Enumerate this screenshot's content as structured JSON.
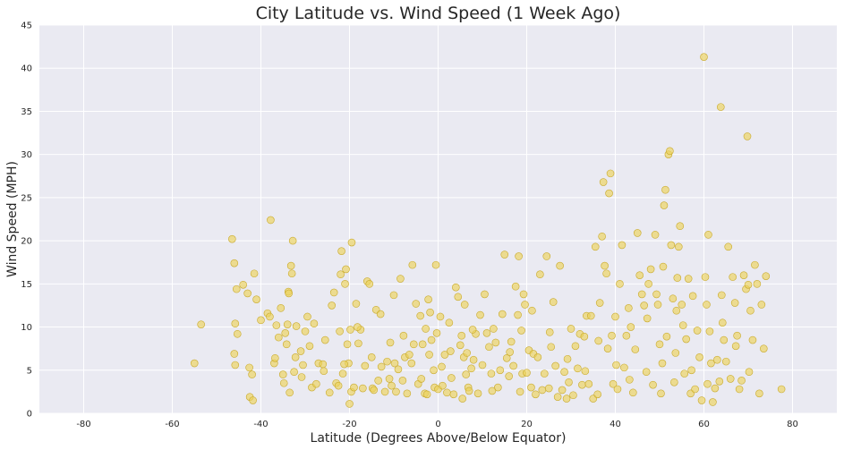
{
  "chart_data": {
    "type": "scatter",
    "title": "City Latitude vs. Wind Speed (1 Week Ago)",
    "xlabel": "Latitude (Degrees Above/Below Equator)",
    "ylabel": "Wind Speed (MPH)",
    "xlim": [
      -90,
      90
    ],
    "ylim": [
      0,
      45
    ],
    "xticks": [
      -80,
      -60,
      -40,
      -20,
      0,
      20,
      40,
      60,
      80
    ],
    "yticks": [
      0,
      5,
      10,
      15,
      20,
      25,
      30,
      35,
      40,
      45
    ],
    "grid": true,
    "colors": {
      "point_fill": "#ecd25a",
      "point_edge": "#c8a92a",
      "plot_bg": "#eaeaf2",
      "grid": "#ffffff"
    },
    "series": [
      {
        "values": [
          [
            -55,
            5.8
          ],
          [
            -53.5,
            10.3
          ],
          [
            -46.5,
            20.2
          ],
          [
            -46,
            17.4
          ],
          [
            -45.8,
            10.4
          ],
          [
            -45.5,
            14.4
          ],
          [
            -45.3,
            9.2
          ],
          [
            -46,
            6.9
          ],
          [
            -45.8,
            5.6
          ],
          [
            -43,
            13.9
          ],
          [
            -42.6,
            5.3
          ],
          [
            -42,
            4.5
          ],
          [
            -41.5,
            16.2
          ],
          [
            -41,
            13.2
          ],
          [
            -42.5,
            1.9
          ],
          [
            -41.8,
            1.5
          ],
          [
            -40,
            10.8
          ],
          [
            -38.5,
            11.6
          ],
          [
            -37.8,
            22.4
          ],
          [
            -37,
            5.8
          ],
          [
            -36.5,
            10.2
          ],
          [
            -36,
            8.8
          ],
          [
            -35.5,
            12.2
          ],
          [
            -35,
            4.5
          ],
          [
            -34.8,
            3.5
          ],
          [
            -34.5,
            9.3
          ],
          [
            -34.2,
            8.0
          ],
          [
            -34,
            10.3
          ],
          [
            -33.8,
            14.1
          ],
          [
            -33.5,
            2.4
          ],
          [
            -33.2,
            17.1
          ],
          [
            -33,
            16.2
          ],
          [
            -32.8,
            20.0
          ],
          [
            -32.5,
            4.8
          ],
          [
            -32.2,
            6.5
          ],
          [
            -32,
            10.1
          ],
          [
            -31,
            7.2
          ],
          [
            -30.5,
            5.6
          ],
          [
            -30,
            9.5
          ],
          [
            -29.5,
            11.2
          ],
          [
            -29,
            7.8
          ],
          [
            -28.5,
            3.0
          ],
          [
            -28,
            10.4
          ],
          [
            -27.5,
            3.4
          ],
          [
            -27,
            5.8
          ],
          [
            -26,
            5.7
          ],
          [
            -25.5,
            8.5
          ],
          [
            -24.5,
            2.4
          ],
          [
            -24,
            12.5
          ],
          [
            -23.5,
            14.0
          ],
          [
            -23,
            3.5
          ],
          [
            -22.5,
            3.2
          ],
          [
            -22.2,
            9.5
          ],
          [
            -22,
            16.1
          ],
          [
            -21.8,
            18.8
          ],
          [
            -21.5,
            4.6
          ],
          [
            -21,
            15.0
          ],
          [
            -20.8,
            16.7
          ],
          [
            -20.5,
            8.0
          ],
          [
            -20.2,
            5.8
          ],
          [
            -20,
            1.1
          ],
          [
            -19.8,
            9.7
          ],
          [
            -19.6,
            2.5
          ],
          [
            -19.5,
            19.8
          ],
          [
            -19,
            3.0
          ],
          [
            -18.5,
            12.7
          ],
          [
            -18,
            8.1
          ],
          [
            -17.5,
            9.7
          ],
          [
            -17,
            2.9
          ],
          [
            -16.5,
            5.5
          ],
          [
            -16,
            15.3
          ],
          [
            -15.5,
            15.0
          ],
          [
            -15,
            6.5
          ],
          [
            -14.8,
            2.9
          ],
          [
            -14.5,
            2.7
          ],
          [
            -14,
            12.0
          ],
          [
            -13.5,
            3.8
          ],
          [
            -13,
            11.5
          ],
          [
            -12,
            2.5
          ],
          [
            -11.5,
            6.0
          ],
          [
            -11,
            4.0
          ],
          [
            -10.5,
            3.2
          ],
          [
            -10,
            13.7
          ],
          [
            -9.8,
            5.8
          ],
          [
            -9.5,
            2.5
          ],
          [
            -9,
            5.1
          ],
          [
            -8.5,
            15.6
          ],
          [
            -8,
            3.8
          ],
          [
            -7.5,
            6.5
          ],
          [
            -7,
            2.3
          ],
          [
            -6.5,
            6.8
          ],
          [
            -6,
            5.8
          ],
          [
            -5.8,
            17.2
          ],
          [
            -5.5,
            8.0
          ],
          [
            -5,
            12.7
          ],
          [
            -4.5,
            3.4
          ],
          [
            -4,
            11.3
          ],
          [
            -3.5,
            8.0
          ],
          [
            -3,
            2.3
          ],
          [
            -2.8,
            9.8
          ],
          [
            -2.5,
            2.2
          ],
          [
            -2.2,
            13.2
          ],
          [
            -2,
            6.8
          ],
          [
            -1.8,
            11.7
          ],
          [
            -1.5,
            8.5
          ],
          [
            -1,
            5.0
          ],
          [
            -0.8,
            3.0
          ],
          [
            -0.5,
            17.2
          ],
          [
            -0.3,
            9.3
          ],
          [
            0,
            2.8
          ],
          [
            0.5,
            11.2
          ],
          [
            1,
            3.2
          ],
          [
            1.5,
            6.8
          ],
          [
            2,
            2.4
          ],
          [
            2.5,
            10.5
          ],
          [
            3,
            4.1
          ],
          [
            3.5,
            2.2
          ],
          [
            4,
            14.6
          ],
          [
            4.5,
            13.5
          ],
          [
            5,
            7.9
          ],
          [
            5.3,
            9.0
          ],
          [
            5.5,
            1.7
          ],
          [
            5.8,
            6.5
          ],
          [
            6,
            12.6
          ],
          [
            6.3,
            4.5
          ],
          [
            6.5,
            7.0
          ],
          [
            6.8,
            3.0
          ],
          [
            7,
            2.6
          ],
          [
            7.5,
            5.2
          ],
          [
            8,
            6.2
          ],
          [
            8.5,
            9.2
          ],
          [
            9,
            2.3
          ],
          [
            9.5,
            11.4
          ],
          [
            10,
            5.6
          ],
          [
            10.5,
            13.8
          ],
          [
            11,
            9.3
          ],
          [
            11.5,
            7.7
          ],
          [
            12,
            4.6
          ],
          [
            12.5,
            9.8
          ],
          [
            13,
            8.2
          ],
          [
            13.5,
            3.0
          ],
          [
            14,
            5.0
          ],
          [
            14.5,
            11.5
          ],
          [
            15,
            18.4
          ],
          [
            15.5,
            6.4
          ],
          [
            16,
            4.3
          ],
          [
            16.5,
            8.3
          ],
          [
            17,
            5.5
          ],
          [
            17.5,
            14.7
          ],
          [
            18,
            11.4
          ],
          [
            18.2,
            18.2
          ],
          [
            18.5,
            2.5
          ],
          [
            18.8,
            9.6
          ],
          [
            19,
            4.6
          ],
          [
            19.3,
            13.8
          ],
          [
            19.6,
            12.6
          ],
          [
            20,
            4.7
          ],
          [
            20.5,
            7.3
          ],
          [
            21,
            3.0
          ],
          [
            21.5,
            6.9
          ],
          [
            22,
            2.2
          ],
          [
            22.5,
            6.5
          ],
          [
            23,
            16.1
          ],
          [
            23.5,
            2.7
          ],
          [
            24,
            4.6
          ],
          [
            24.5,
            18.2
          ],
          [
            25,
            2.9
          ],
          [
            25.5,
            7.7
          ],
          [
            26,
            12.9
          ],
          [
            26.5,
            5.5
          ],
          [
            27,
            1.9
          ],
          [
            27.5,
            17.1
          ],
          [
            28,
            2.7
          ],
          [
            28.5,
            4.8
          ],
          [
            29,
            1.7
          ],
          [
            29.5,
            3.6
          ],
          [
            30,
            9.8
          ],
          [
            30.5,
            2.1
          ],
          [
            31,
            7.8
          ],
          [
            31.5,
            5.2
          ],
          [
            32,
            9.2
          ],
          [
            32.5,
            3.3
          ],
          [
            33,
            8.9
          ],
          [
            33.5,
            11.3
          ],
          [
            34,
            3.4
          ],
          [
            34.5,
            11.3
          ],
          [
            35,
            1.7
          ],
          [
            35.5,
            19.3
          ],
          [
            36,
            2.2
          ],
          [
            36.5,
            12.8
          ],
          [
            37,
            20.5
          ],
          [
            37.3,
            26.8
          ],
          [
            37.6,
            17.1
          ],
          [
            38,
            16.2
          ],
          [
            38.3,
            7.5
          ],
          [
            38.6,
            25.5
          ],
          [
            38.9,
            27.8
          ],
          [
            39.2,
            9.0
          ],
          [
            39.5,
            3.4
          ],
          [
            40,
            11.2
          ],
          [
            40.5,
            2.8
          ],
          [
            41,
            15.0
          ],
          [
            41.5,
            19.5
          ],
          [
            42,
            5.3
          ],
          [
            42.5,
            9.0
          ],
          [
            43,
            12.2
          ],
          [
            43.5,
            10.0
          ],
          [
            44,
            2.4
          ],
          [
            44.5,
            7.4
          ],
          [
            45,
            20.9
          ],
          [
            45.5,
            16.0
          ],
          [
            46,
            13.8
          ],
          [
            46.5,
            12.5
          ],
          [
            47,
            4.8
          ],
          [
            47.5,
            15.0
          ],
          [
            48,
            16.7
          ],
          [
            48.5,
            3.3
          ],
          [
            49,
            20.7
          ],
          [
            49.3,
            13.8
          ],
          [
            49.6,
            12.6
          ],
          [
            50,
            8.0
          ],
          [
            50.3,
            2.3
          ],
          [
            50.6,
            5.8
          ],
          [
            51,
            24.1
          ],
          [
            51.3,
            25.9
          ],
          [
            51.6,
            8.9
          ],
          [
            52,
            30.0
          ],
          [
            52.3,
            30.4
          ],
          [
            52.6,
            19.5
          ],
          [
            53,
            13.3
          ],
          [
            53.3,
            3.6
          ],
          [
            53.6,
            7.0
          ],
          [
            54,
            15.7
          ],
          [
            54.3,
            19.3
          ],
          [
            54.6,
            21.7
          ],
          [
            55,
            12.6
          ],
          [
            55.3,
            10.2
          ],
          [
            55.6,
            4.6
          ],
          [
            56,
            8.6
          ],
          [
            56.5,
            15.6
          ],
          [
            57,
            2.3
          ],
          [
            57.5,
            13.6
          ],
          [
            58,
            2.8
          ],
          [
            58.5,
            9.6
          ],
          [
            59,
            6.5
          ],
          [
            59.5,
            1.5
          ],
          [
            60,
            41.3
          ],
          [
            60.3,
            15.8
          ],
          [
            60.6,
            12.6
          ],
          [
            61,
            20.7
          ],
          [
            61.3,
            9.5
          ],
          [
            61.6,
            5.8
          ],
          [
            62,
            1.3
          ],
          [
            62.5,
            2.9
          ],
          [
            63,
            6.2
          ],
          [
            63.5,
            3.7
          ],
          [
            63.8,
            35.5
          ],
          [
            64,
            13.7
          ],
          [
            64.5,
            8.5
          ],
          [
            65,
            6.0
          ],
          [
            65.5,
            19.3
          ],
          [
            66,
            4.0
          ],
          [
            66.5,
            15.8
          ],
          [
            67,
            12.8
          ],
          [
            67.5,
            9.0
          ],
          [
            68,
            2.8
          ],
          [
            68.5,
            3.8
          ],
          [
            69,
            16.0
          ],
          [
            69.5,
            14.4
          ],
          [
            69.8,
            32.1
          ],
          [
            70,
            14.9
          ],
          [
            70.5,
            11.9
          ],
          [
            71,
            8.5
          ],
          [
            71.5,
            17.2
          ],
          [
            72,
            15.0
          ],
          [
            72.5,
            2.3
          ],
          [
            73,
            12.6
          ],
          [
            73.5,
            7.5
          ],
          [
            74,
            15.9
          ],
          [
            77.5,
            2.8
          ],
          [
            -44,
            14.9
          ],
          [
            -38,
            11.2
          ],
          [
            -36.8,
            6.4
          ],
          [
            -33.7,
            13.9
          ],
          [
            -30.8,
            4.2
          ],
          [
            -25.8,
            4.9
          ],
          [
            -21.2,
            5.7
          ],
          [
            -18.2,
            10.0
          ],
          [
            -12.8,
            5.4
          ],
          [
            -10.8,
            8.2
          ],
          [
            -7.8,
            9.0
          ],
          [
            -3.8,
            4.0
          ],
          [
            0.8,
            5.4
          ],
          [
            2.8,
            7.2
          ],
          [
            7.8,
            9.7
          ],
          [
            12.2,
            2.6
          ],
          [
            16.2,
            7.1
          ],
          [
            21.2,
            11.9
          ],
          [
            25.2,
            9.4
          ],
          [
            29.2,
            6.3
          ],
          [
            33.2,
            4.9
          ],
          [
            36.2,
            8.4
          ],
          [
            40.2,
            5.6
          ],
          [
            43.2,
            3.9
          ],
          [
            47.2,
            11.0
          ],
          [
            50.8,
            17.0
          ],
          [
            53.8,
            11.9
          ],
          [
            57.2,
            5.0
          ],
          [
            60.8,
            3.4
          ],
          [
            64.2,
            10.5
          ],
          [
            67.2,
            7.8
          ],
          [
            70.2,
            4.8
          ]
        ]
      }
    ]
  }
}
